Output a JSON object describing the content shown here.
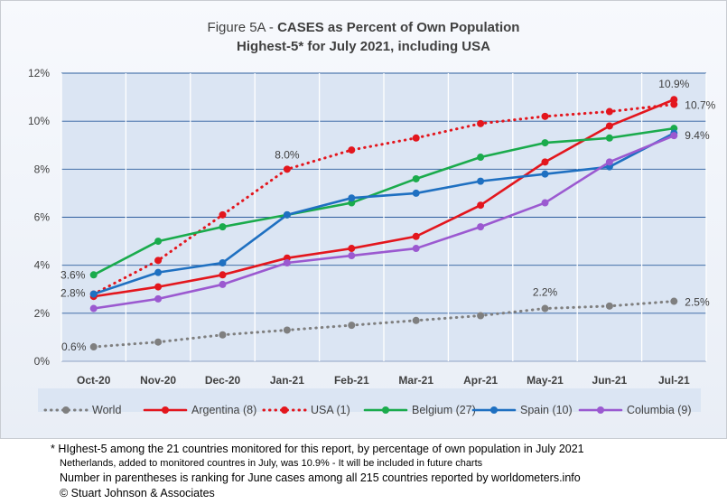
{
  "chart_data": {
    "type": "line",
    "title_prefix": "Figure 5A - ",
    "title_bold": "CASES as Percent of Own Population",
    "subtitle": "Highest-5* for July 2021, including USA",
    "categories": [
      "Oct-20",
      "Nov-20",
      "Dec-20",
      "Jan-21",
      "Feb-21",
      "Mar-21",
      "Apr-21",
      "May-21",
      "Jun-21",
      "Jul-21"
    ],
    "ylim": [
      0,
      12
    ],
    "yticks": [
      "0%",
      "2%",
      "4%",
      "6%",
      "8%",
      "10%",
      "12%"
    ],
    "grid": true,
    "legend_position": "bottom",
    "series": [
      {
        "name": "World",
        "color": "#7f7f7f",
        "style": "dotted",
        "values": [
          0.6,
          0.8,
          1.1,
          1.3,
          1.5,
          1.7,
          1.9,
          2.2,
          2.3,
          2.5
        ]
      },
      {
        "name": "Argentina (8)",
        "color": "#e3161d",
        "style": "solid",
        "values": [
          2.7,
          3.1,
          3.6,
          4.3,
          4.7,
          5.2,
          6.5,
          8.3,
          9.8,
          10.9
        ]
      },
      {
        "name": "USA (1)",
        "color": "#e3161d",
        "style": "dotted",
        "values": [
          2.8,
          4.2,
          6.1,
          8.0,
          8.8,
          9.3,
          9.9,
          10.2,
          10.4,
          10.7
        ]
      },
      {
        "name": "Belgium (27)",
        "color": "#1aab4c",
        "style": "solid",
        "values": [
          3.6,
          5.0,
          5.6,
          6.1,
          6.6,
          7.6,
          8.5,
          9.1,
          9.3,
          9.7
        ]
      },
      {
        "name": "Spain (10)",
        "color": "#1f70c1",
        "style": "solid",
        "values": [
          2.8,
          3.7,
          4.1,
          6.1,
          6.8,
          7.0,
          7.5,
          7.8,
          8.1,
          9.5
        ]
      },
      {
        "name": "Columbia (9)",
        "color": "#9b59d0",
        "style": "solid",
        "values": [
          2.2,
          2.6,
          3.2,
          4.1,
          4.4,
          4.7,
          5.6,
          6.6,
          8.3,
          9.4
        ]
      }
    ],
    "annotations": [
      {
        "text": "3.6%",
        "series": 3,
        "index": 0
      },
      {
        "text": "2.8%",
        "series": 2,
        "index": 0
      },
      {
        "text": "0.6%",
        "series": 0,
        "index": 0
      },
      {
        "text": "8.0%",
        "series": 2,
        "index": 3
      },
      {
        "text": "2.2%",
        "series": 0,
        "index": 7
      },
      {
        "text": "10.9%",
        "series": 1,
        "index": 9
      },
      {
        "text": "10.7%",
        "series": 2,
        "index": 9
      },
      {
        "text": "9.4%",
        "series": 5,
        "index": 9
      },
      {
        "text": "2.5%",
        "series": 0,
        "index": 9
      }
    ]
  },
  "footnotes": {
    "line1": "* HIghest-5 among the 21 countries monitored for this report, by percentage of own population in July 2021",
    "line2": "Netherlands, added to monitored countres in July, was 10.9% - It will be included in future charts",
    "line3": "Number in parentheses is ranking for June cases among all 215 countries reported by worldometers.info",
    "line4": "© Stuart Johnson & Associates"
  }
}
